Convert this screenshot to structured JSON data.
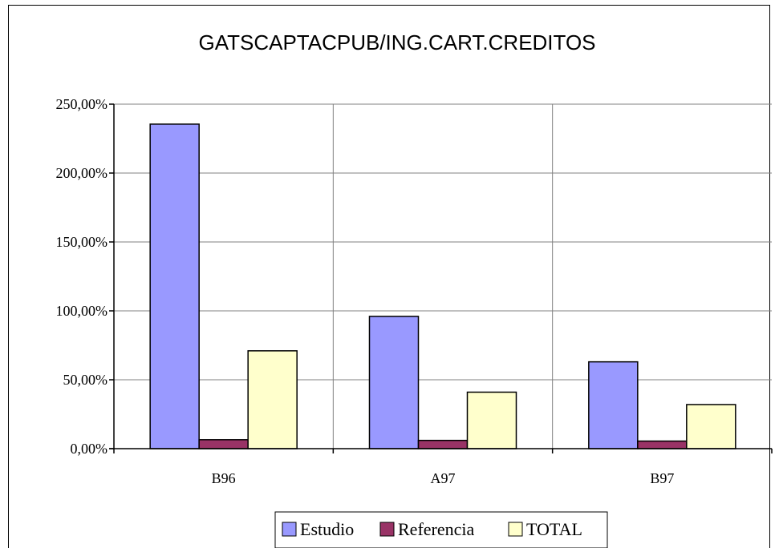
{
  "chart_data": {
    "type": "bar",
    "title": "GATSCAPTACPUB/ING.CART.CREDITOS",
    "xlabel": "",
    "ylabel": "",
    "categories": [
      "B96",
      "A97",
      "B97"
    ],
    "series": [
      {
        "name": "Estudio",
        "values": [
          235.5,
          96.0,
          63.0
        ],
        "color": "#9999ff"
      },
      {
        "name": "Referencia",
        "values": [
          6.5,
          6.0,
          5.5
        ],
        "color": "#993366"
      },
      {
        "name": "TOTAL",
        "values": [
          71.0,
          41.0,
          32.0
        ],
        "color": "#ffffcc"
      }
    ],
    "ylim": [
      0,
      250
    ],
    "yticks": [
      0,
      50,
      100,
      150,
      200,
      250
    ],
    "ytick_labels": [
      "0,00%",
      "50,00%",
      "100,00%",
      "150,00%",
      "200,00%",
      "250,00%"
    ],
    "grid": true,
    "legend_position": "bottom"
  }
}
